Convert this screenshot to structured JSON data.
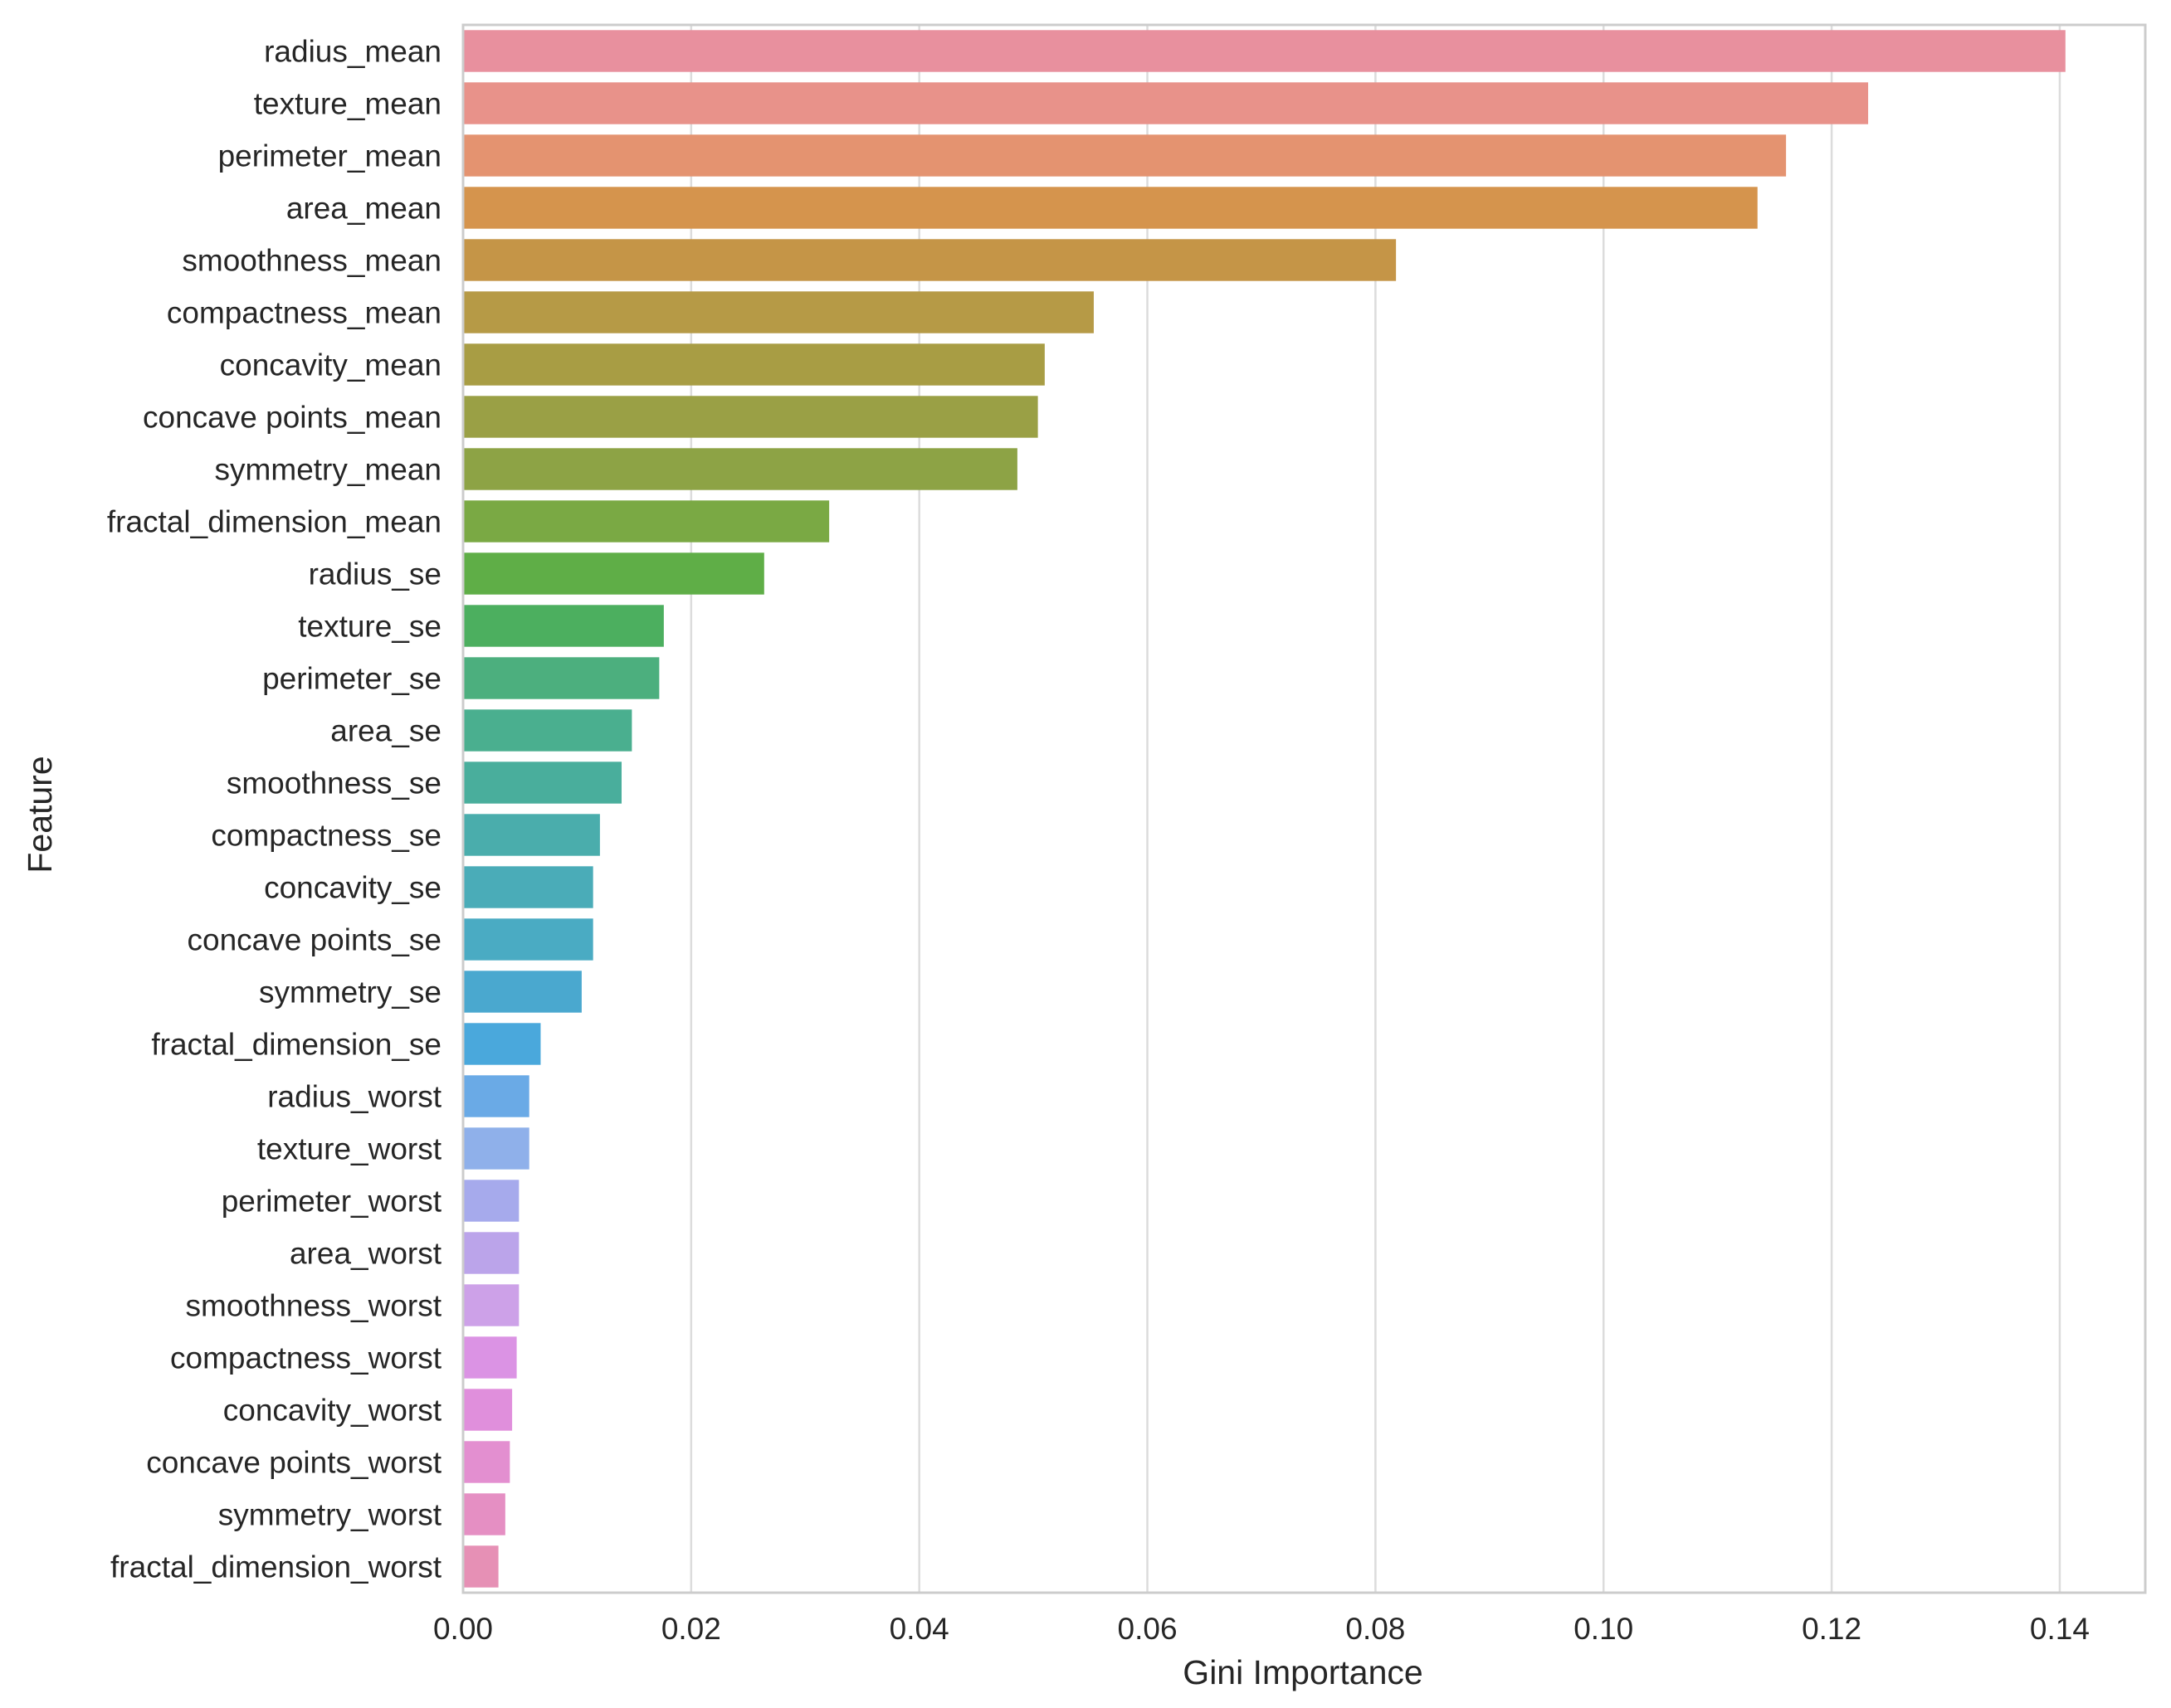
{
  "chart_data": {
    "type": "bar",
    "orientation": "horizontal",
    "title": "",
    "xlabel": "Gini Importance",
    "ylabel": "Feature",
    "xlim": [
      0,
      0.1475
    ],
    "xticks": [
      0.0,
      0.02,
      0.04,
      0.06,
      0.08,
      0.1,
      0.12,
      0.14
    ],
    "xtick_labels": [
      "0.00",
      "0.02",
      "0.04",
      "0.06",
      "0.08",
      "0.10",
      "0.12",
      "0.14"
    ],
    "grid": "x",
    "categories": [
      "radius_mean",
      "texture_mean",
      "perimeter_mean",
      "area_mean",
      "smoothness_mean",
      "compactness_mean",
      "concavity_mean",
      "concave points_mean",
      "symmetry_mean",
      "fractal_dimension_mean",
      "radius_se",
      "texture_se",
      "perimeter_se",
      "area_se",
      "smoothness_se",
      "compactness_se",
      "concavity_se",
      "concave points_se",
      "symmetry_se",
      "fractal_dimension_se",
      "radius_worst",
      "texture_worst",
      "perimeter_worst",
      "area_worst",
      "smoothness_worst",
      "compactness_worst",
      "concavity_worst",
      "concave points_worst",
      "symmetry_worst",
      "fractal_dimension_worst"
    ],
    "values": [
      0.1405,
      0.1232,
      0.116,
      0.1135,
      0.0818,
      0.0553,
      0.051,
      0.0504,
      0.0486,
      0.0321,
      0.0264,
      0.0176,
      0.0172,
      0.0148,
      0.0139,
      0.012,
      0.0114,
      0.0114,
      0.0104,
      0.0068,
      0.0058,
      0.0058,
      0.0049,
      0.0049,
      0.0049,
      0.0047,
      0.0043,
      0.0041,
      0.0037,
      0.0031
    ],
    "colors": [
      "#e8909e",
      "#e8928a",
      "#e49370",
      "#d5944d",
      "#c59547",
      "#b69a46",
      "#a89d44",
      "#9aa045",
      "#8da345",
      "#7aa944",
      "#5fae47",
      "#4caf5f",
      "#4caf7e",
      "#4aaf8f",
      "#49ae9c",
      "#4aadac",
      "#4aacb8",
      "#4aabc3",
      "#4aa8cf",
      "#4aa8dc",
      "#6aaae6",
      "#8fb0ea",
      "#a6aaec",
      "#bba4ea",
      "#cda1e8",
      "#db93e4",
      "#e08fdc",
      "#e38fd0",
      "#e58fc3",
      "#e690b5"
    ]
  }
}
